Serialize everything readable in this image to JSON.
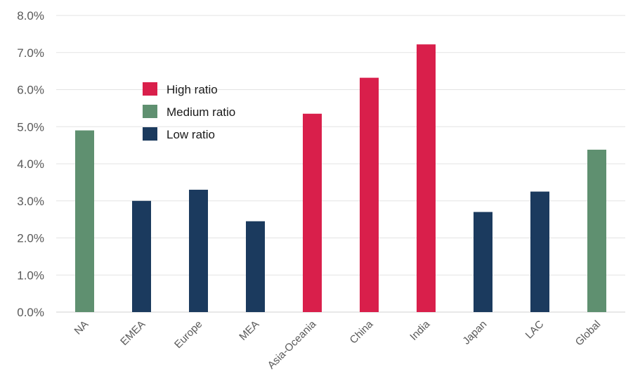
{
  "chart_data": {
    "type": "bar",
    "title": "",
    "xlabel": "",
    "ylabel": "",
    "ylim": [
      0,
      8
    ],
    "yticks": [
      "0.0%",
      "1.0%",
      "2.0%",
      "3.0%",
      "4.0%",
      "5.0%",
      "6.0%",
      "7.0%",
      "8.0%"
    ],
    "grid": true,
    "legend_position": "upper-left",
    "categories": [
      "NA",
      "EMEA",
      "Europe",
      "MEA",
      "Asia-Oceania",
      "China",
      "India",
      "Japan",
      "LAC",
      "Global"
    ],
    "values": [
      4.9,
      3.0,
      3.3,
      2.45,
      5.35,
      6.32,
      7.22,
      2.7,
      3.25,
      4.38
    ],
    "groups": [
      "medium",
      "low",
      "low",
      "low",
      "high",
      "high",
      "high",
      "low",
      "low",
      "medium"
    ],
    "legend": [
      {
        "key": "high",
        "label": "High ratio",
        "color": "#d91f4b"
      },
      {
        "key": "medium",
        "label": "Medium ratio",
        "color": "#5f9070"
      },
      {
        "key": "low",
        "label": "Low ratio",
        "color": "#1b3a5e"
      }
    ]
  }
}
